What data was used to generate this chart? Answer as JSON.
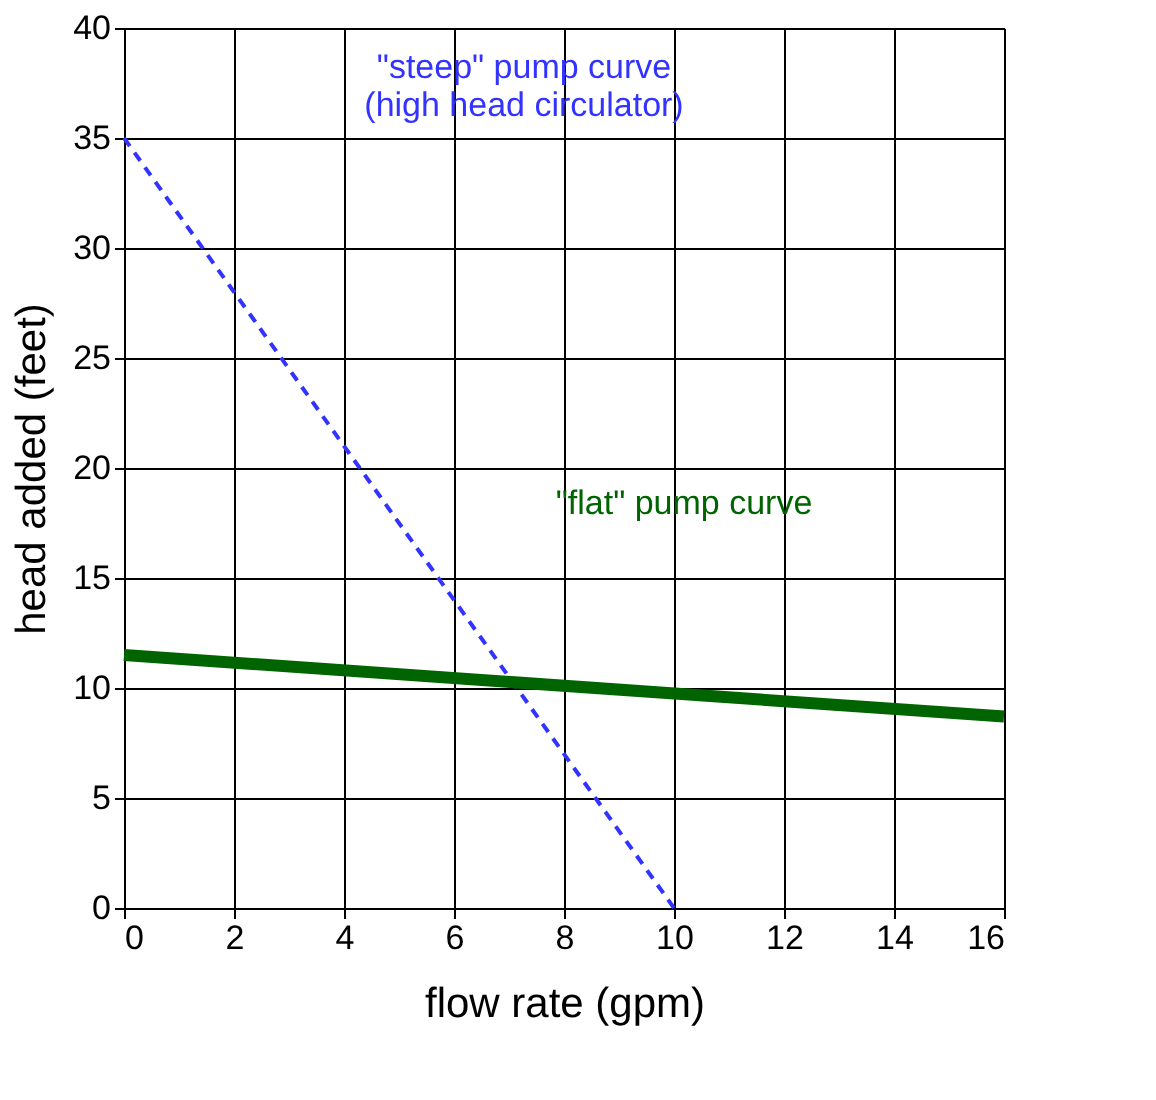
{
  "chart_data": {
    "type": "line",
    "xlabel": "flow rate (gpm)",
    "ylabel": "head added (feet)",
    "xlim": [
      0,
      16
    ],
    "xticks": [
      0,
      2,
      4,
      6,
      8,
      10,
      12,
      14,
      16
    ],
    "ylim": [
      0,
      40
    ],
    "yticks": [
      0,
      5,
      10,
      15,
      20,
      25,
      30,
      35,
      40
    ],
    "grid": true,
    "marker": "none",
    "series": [
      {
        "color": "#3333ff",
        "line_style": "dashed",
        "x": [
          0,
          10
        ],
        "values": [
          35,
          0
        ]
      },
      {
        "color": "#006400",
        "line_style": "solid",
        "x": [
          0,
          16
        ],
        "values": [
          11.5,
          8.7
        ]
      }
    ],
    "annotations": [
      "\"steep\" pump curve\n(high head circulator)",
      "\"flat\" pump curve"
    ]
  }
}
